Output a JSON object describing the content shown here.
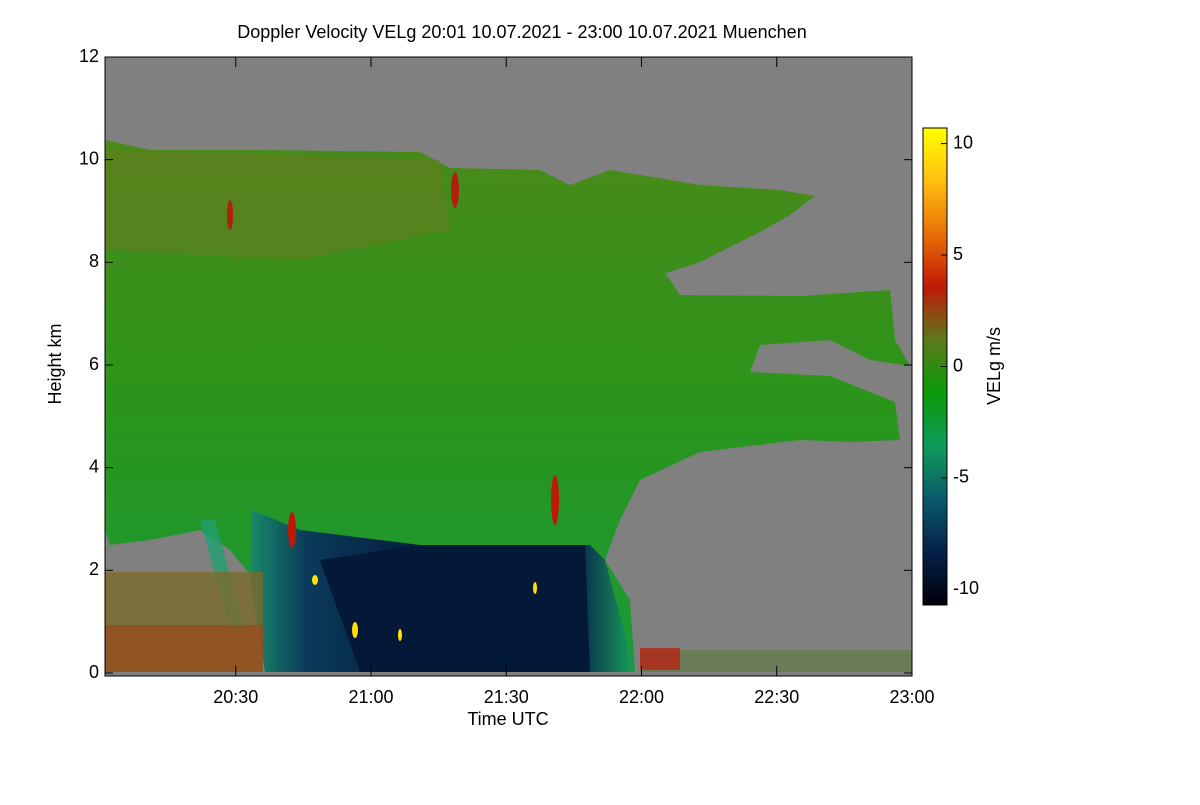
{
  "chart_data": {
    "type": "heatmap",
    "title": "Doppler Velocity VELg   20:01 10.07.2021 - 23:00 10.07.2021 Muenchen",
    "xlabel": "Time UTC",
    "ylabel": "Height km",
    "colorbar_label": "VELg m/s",
    "xlim": [
      1201,
      1380
    ],
    "xticks": [
      {
        "value": 1230,
        "label": "20:30"
      },
      {
        "value": 1260,
        "label": "21:00"
      },
      {
        "value": 1290,
        "label": "21:30"
      },
      {
        "value": 1320,
        "label": "22:00"
      },
      {
        "value": 1350,
        "label": "22:30"
      },
      {
        "value": 1380,
        "label": "23:00"
      }
    ],
    "ylim": [
      0,
      12
    ],
    "yticks": [
      0,
      2,
      4,
      6,
      8,
      10,
      12
    ],
    "clim": [
      -10.7,
      10.7
    ],
    "cticks": [
      -10,
      -5,
      0,
      5,
      10
    ],
    "colors": [
      "#000008",
      "#06204a",
      "#0a5a6a",
      "#0f9a5a",
      "#0a9a0a",
      "#5a7a1a",
      "#c01808",
      "#e87008",
      "#ffc010",
      "#ffff00"
    ],
    "background_color": "#808080"
  }
}
